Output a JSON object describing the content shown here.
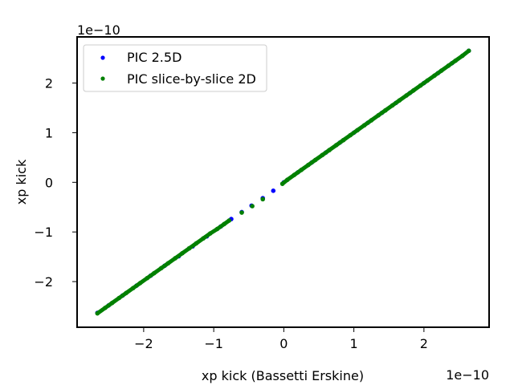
{
  "chart_data": {
    "type": "scatter",
    "title": "",
    "xlabel": "xp kick (Bassetti Erskine)",
    "ylabel": "xp kick",
    "x_offset_label": "1e−10",
    "y_offset_label": "1e−10",
    "xlim": [
      -2.95,
      2.93
    ],
    "ylim": [
      -2.92,
      2.93
    ],
    "x_ticks": [
      {
        "value": -2,
        "label": "−2"
      },
      {
        "value": -1,
        "label": "−1"
      },
      {
        "value": 0,
        "label": "0"
      },
      {
        "value": 1,
        "label": "1"
      },
      {
        "value": 2,
        "label": "2"
      }
    ],
    "y_ticks": [
      {
        "value": -2,
        "label": "−2"
      },
      {
        "value": -1,
        "label": "−1"
      },
      {
        "value": 0,
        "label": "0"
      },
      {
        "value": 1,
        "label": "1"
      },
      {
        "value": 2,
        "label": "2"
      }
    ],
    "grid": false,
    "legend_position": "top-left",
    "series": [
      {
        "name": "PIC 2.5D",
        "color": "#0000ff",
        "marker": "circle",
        "x": [
          -2.66,
          -2.5,
          -2.3,
          -2.1,
          -1.9,
          -1.7,
          -1.5,
          -1.3,
          -1.1,
          -0.9,
          -0.75,
          -0.6,
          -0.46,
          -0.3,
          -0.15,
          0.0,
          0.2,
          0.4,
          0.6,
          0.8,
          1.0,
          1.2,
          1.4,
          1.6,
          1.8,
          2.0,
          2.2,
          2.4,
          2.64
        ],
        "y": [
          -2.63,
          -2.48,
          -2.28,
          -2.08,
          -1.88,
          -1.68,
          -1.49,
          -1.29,
          -1.09,
          -0.89,
          -0.74,
          -0.6,
          -0.47,
          -0.32,
          -0.17,
          0.0,
          0.2,
          0.4,
          0.6,
          0.8,
          1.0,
          1.2,
          1.4,
          1.6,
          1.8,
          2.0,
          2.2,
          2.4,
          2.65
        ]
      },
      {
        "name": "PIC slice-by-slice 2D",
        "color": "#008000",
        "marker": "circle",
        "x": [
          -2.66,
          -2.55,
          -2.45,
          -2.35,
          -2.25,
          -2.15,
          -2.05,
          -1.95,
          -1.85,
          -1.75,
          -1.65,
          -1.55,
          -1.45,
          -1.35,
          -1.25,
          -1.15,
          -1.05,
          -0.95,
          -0.85,
          -0.78,
          -0.6,
          -0.45,
          -0.3,
          -0.02,
          0.05,
          0.15,
          0.25,
          0.35,
          0.45,
          0.55,
          0.65,
          0.75,
          0.85,
          0.95,
          1.05,
          1.15,
          1.25,
          1.35,
          1.45,
          1.55,
          1.65,
          1.75,
          1.85,
          1.95,
          2.05,
          2.15,
          2.25,
          2.35,
          2.45,
          2.55,
          2.64
        ],
        "y": [
          -2.64,
          -2.53,
          -2.43,
          -2.33,
          -2.23,
          -2.13,
          -2.03,
          -1.93,
          -1.83,
          -1.73,
          -1.63,
          -1.53,
          -1.43,
          -1.33,
          -1.23,
          -1.13,
          -1.03,
          -0.94,
          -0.84,
          -0.77,
          -0.61,
          -0.48,
          -0.34,
          -0.03,
          0.05,
          0.15,
          0.25,
          0.35,
          0.45,
          0.55,
          0.65,
          0.75,
          0.85,
          0.95,
          1.05,
          1.15,
          1.25,
          1.35,
          1.45,
          1.55,
          1.65,
          1.75,
          1.85,
          1.95,
          2.05,
          2.15,
          2.25,
          2.35,
          2.45,
          2.55,
          2.65
        ]
      }
    ]
  }
}
